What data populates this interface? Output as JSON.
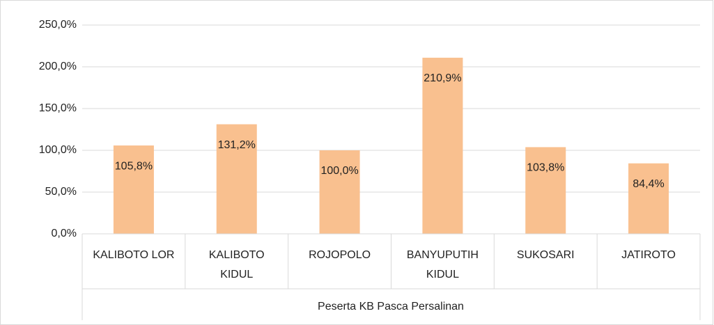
{
  "chart_data": {
    "type": "bar",
    "x_group_label": "Peserta KB Pasca Persalinan",
    "categories": [
      "KALIBOTO LOR",
      "KALIBOTO KIDUL",
      "ROJOPOLO",
      "BANYUPUTIH KIDUL",
      "SUKOSARI",
      "JATIROTO"
    ],
    "values": [
      105.8,
      131.2,
      100.0,
      210.9,
      103.8,
      84.4
    ],
    "value_labels": [
      "105,8%",
      "131,2%",
      "100,0%",
      "210,9%",
      "103,8%",
      "84,4%"
    ],
    "color": "#f9c08f",
    "ylim": [
      0,
      250
    ],
    "yticks": [
      {
        "value": 0,
        "label": "0,0%"
      },
      {
        "value": 50,
        "label": "50,0%"
      },
      {
        "value": 100,
        "label": "100,0%"
      },
      {
        "value": 150,
        "label": "150,0%"
      },
      {
        "value": 200,
        "label": "200,0%"
      },
      {
        "value": 250,
        "label": "250,0%"
      }
    ],
    "grid": true
  }
}
